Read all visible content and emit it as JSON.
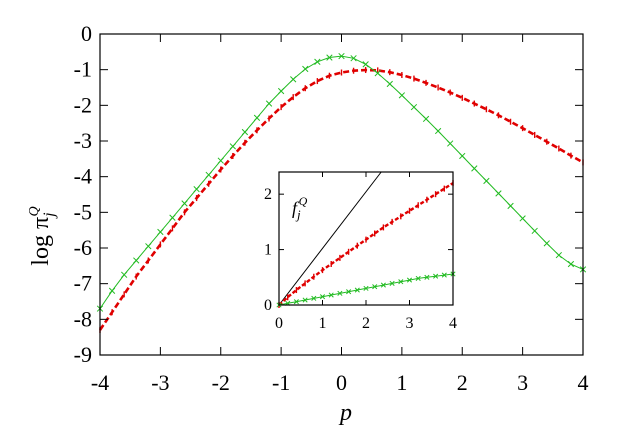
{
  "chart_data": [
    {
      "type": "line",
      "xlabel": "p",
      "ylabel": "log π",
      "ylabel_sub": "j",
      "ylabel_sup": "Q",
      "xlim": [
        -4,
        4
      ],
      "ylim": [
        -9,
        0
      ],
      "xticks": [
        "-4",
        "-3",
        "-2",
        "-1",
        "0",
        "1",
        "2",
        "3",
        "4"
      ],
      "yticks": [
        "0",
        "-1",
        "-2",
        "-3",
        "-4",
        "-5",
        "-6",
        "-7",
        "-8",
        "-9"
      ],
      "series": [
        {
          "color": "#e00000",
          "style": "dashed-with-errorbars",
          "x": [
            -4.0,
            -3.8,
            -3.6,
            -3.4,
            -3.2,
            -3.0,
            -2.8,
            -2.6,
            -2.4,
            -2.2,
            -2.0,
            -1.8,
            -1.6,
            -1.4,
            -1.2,
            -1.0,
            -0.8,
            -0.6,
            -0.4,
            -0.2,
            0.0,
            0.2,
            0.4,
            0.6,
            0.8,
            1.0,
            1.2,
            1.4,
            1.6,
            1.8,
            2.0,
            2.2,
            2.4,
            2.6,
            2.8,
            3.0,
            3.2,
            3.4,
            3.6,
            3.8,
            4.0
          ],
          "y": [
            -8.3,
            -7.8,
            -7.3,
            -6.8,
            -6.35,
            -5.9,
            -5.45,
            -5.0,
            -4.6,
            -4.2,
            -3.8,
            -3.42,
            -3.05,
            -2.7,
            -2.37,
            -2.05,
            -1.77,
            -1.52,
            -1.32,
            -1.17,
            -1.08,
            -1.03,
            -1.01,
            -1.02,
            -1.07,
            -1.15,
            -1.25,
            -1.37,
            -1.5,
            -1.64,
            -1.79,
            -1.95,
            -2.11,
            -2.28,
            -2.46,
            -2.64,
            -2.83,
            -3.02,
            -3.21,
            -3.41,
            -3.6
          ]
        },
        {
          "color": "#22bb22",
          "style": "solid-with-x-markers",
          "x": [
            -4.0,
            -3.8,
            -3.6,
            -3.4,
            -3.2,
            -3.0,
            -2.8,
            -2.6,
            -2.4,
            -2.2,
            -2.0,
            -1.8,
            -1.6,
            -1.4,
            -1.2,
            -1.0,
            -0.8,
            -0.6,
            -0.4,
            -0.2,
            0.0,
            0.2,
            0.4,
            0.6,
            0.8,
            1.0,
            1.2,
            1.4,
            1.6,
            1.8,
            2.0,
            2.2,
            2.4,
            2.6,
            2.8,
            3.0,
            3.2,
            3.4,
            3.6,
            3.8,
            4.0
          ],
          "y": [
            -7.7,
            -7.2,
            -6.75,
            -6.35,
            -5.95,
            -5.55,
            -5.15,
            -4.75,
            -4.35,
            -3.95,
            -3.55,
            -3.15,
            -2.75,
            -2.35,
            -1.95,
            -1.6,
            -1.27,
            -0.98,
            -0.78,
            -0.66,
            -0.62,
            -0.68,
            -0.85,
            -1.1,
            -1.4,
            -1.72,
            -2.05,
            -2.38,
            -2.72,
            -3.07,
            -3.42,
            -3.77,
            -4.12,
            -4.47,
            -4.82,
            -5.17,
            -5.52,
            -5.87,
            -6.2,
            -6.45,
            -6.6
          ]
        }
      ]
    },
    {
      "type": "line",
      "title": "f",
      "title_sub": "j",
      "title_sup": "Q",
      "xlim": [
        0,
        4
      ],
      "ylim": [
        0,
        2.4
      ],
      "xticks": [
        "0",
        "1",
        "2",
        "3",
        "4"
      ],
      "yticks": [
        "0",
        "1",
        "2"
      ],
      "series": [
        {
          "color": "#000000",
          "style": "solid",
          "x": [
            0,
            2.35
          ],
          "y": [
            0,
            2.4
          ]
        },
        {
          "color": "#e00000",
          "style": "dashed-with-errorbars",
          "x": [
            0.0,
            0.2,
            0.4,
            0.6,
            0.8,
            1.0,
            1.2,
            1.4,
            1.6,
            1.8,
            2.0,
            2.2,
            2.4,
            2.6,
            2.8,
            3.0,
            3.2,
            3.4,
            3.6,
            3.8,
            4.0
          ],
          "y": [
            0.0,
            0.14,
            0.27,
            0.39,
            0.51,
            0.63,
            0.74,
            0.85,
            0.96,
            1.07,
            1.18,
            1.29,
            1.4,
            1.5,
            1.6,
            1.7,
            1.8,
            1.9,
            2.0,
            2.1,
            2.2
          ]
        },
        {
          "color": "#22bb22",
          "style": "solid-with-x-markers",
          "x": [
            0.0,
            0.2,
            0.4,
            0.6,
            0.8,
            1.0,
            1.2,
            1.4,
            1.6,
            1.8,
            2.0,
            2.2,
            2.4,
            2.6,
            2.8,
            3.0,
            3.2,
            3.4,
            3.6,
            3.8,
            4.0
          ],
          "y": [
            0.0,
            0.03,
            0.06,
            0.09,
            0.12,
            0.15,
            0.18,
            0.21,
            0.24,
            0.27,
            0.3,
            0.33,
            0.36,
            0.39,
            0.42,
            0.45,
            0.48,
            0.5,
            0.52,
            0.54,
            0.56
          ]
        }
      ]
    }
  ]
}
